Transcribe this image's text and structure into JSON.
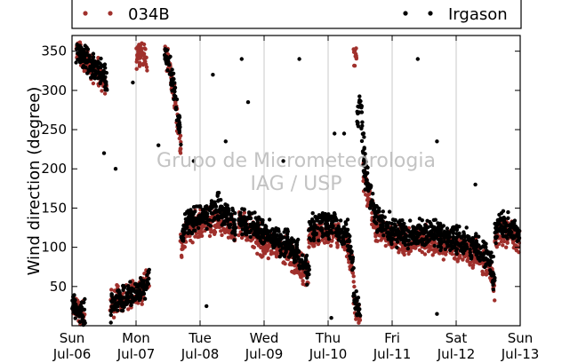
{
  "chart_data": {
    "type": "scatter",
    "title": "",
    "xlabel": "",
    "ylabel": "Wind direction (degree)",
    "ylim": [
      0,
      370
    ],
    "yticks": [
      50,
      100,
      150,
      200,
      250,
      300,
      350
    ],
    "xlim": [
      0,
      7
    ],
    "xticks": [
      {
        "day": "Sun",
        "date": "Jul-06"
      },
      {
        "day": "Mon",
        "date": "Jul-07"
      },
      {
        "day": "Tue",
        "date": "Jul-08"
      },
      {
        "day": "Wed",
        "date": "Jul-09"
      },
      {
        "day": "Thu",
        "date": "Jul-10"
      },
      {
        "day": "Fri",
        "date": "Jul-11"
      },
      {
        "day": "Sat",
        "date": "Jul-12"
      },
      {
        "day": "Sun",
        "date": "Jul-13"
      }
    ],
    "grid": "vertical",
    "legend_position": "top",
    "series": [
      {
        "name": "034B",
        "color": "#a0302c",
        "segments": [
          {
            "x": [
              0.0,
              0.05,
              0.1,
              0.15,
              0.2
            ],
            "y": [
              30,
              22,
              18,
              15,
              12
            ]
          },
          {
            "x": [
              0.07,
              0.2,
              0.35,
              0.5,
              0.55
            ],
            "y": [
              350,
              340,
              325,
              310,
              300
            ]
          },
          {
            "x": [
              0.6,
              0.75,
              0.9,
              1.1,
              1.2
            ],
            "y": [
              25,
              35,
              40,
              45,
              60
            ]
          },
          {
            "x": [
              1.0,
              1.02
            ],
            "y": [
              340,
              345
            ]
          },
          {
            "x": [
              1.0,
              1.1,
              1.17
            ],
            "y": [
              350,
              345,
              330
            ]
          },
          {
            "x": [
              1.45,
              1.52,
              1.6,
              1.7
            ],
            "y": [
              350,
              330,
              290,
              230
            ]
          },
          {
            "x": [
              1.7,
              1.8,
              2.0,
              2.3,
              2.55
            ],
            "y": [
              100,
              120,
              130,
              135,
              120
            ]
          },
          {
            "x": [
              2.6,
              2.8,
              3.0,
              3.2,
              3.5,
              3.7
            ],
            "y": [
              130,
              120,
              105,
              100,
              85,
              60
            ]
          },
          {
            "x": [
              3.7,
              3.9,
              4.1,
              4.3,
              4.4
            ],
            "y": [
              110,
              120,
              118,
              105,
              60
            ]
          },
          {
            "x": [
              4.4,
              4.45,
              4.5
            ],
            "y": [
              30,
              20,
              10
            ]
          },
          {
            "x": [
              4.4,
              4.45
            ],
            "y": [
              345,
              340
            ]
          },
          {
            "x": [
              4.55,
              4.75,
              5.0,
              5.3,
              5.5,
              5.75
            ],
            "y": [
              195,
              125,
              110,
              105,
              110,
              108
            ]
          },
          {
            "x": [
              5.75,
              6.0,
              6.3,
              6.5,
              6.6
            ],
            "y": [
              105,
              100,
              90,
              75,
              50
            ]
          },
          {
            "x": [
              6.6,
              6.7,
              6.85,
              7.0
            ],
            "y": [
              110,
              120,
              115,
              105
            ]
          }
        ]
      },
      {
        "name": "Irgason",
        "color": "#000000",
        "segments": [
          {
            "x": [
              0.0,
              0.05,
              0.1,
              0.15,
              0.2
            ],
            "y": [
              30,
              22,
              18,
              15,
              12
            ]
          },
          {
            "x": [
              0.07,
              0.2,
              0.35,
              0.5,
              0.55
            ],
            "y": [
              350,
              340,
              330,
              320,
              310
            ]
          },
          {
            "x": [
              0.6,
              0.75,
              0.9,
              1.1,
              1.2
            ],
            "y": [
              25,
              35,
              40,
              45,
              60
            ]
          },
          {
            "x": [
              1.45,
              1.52,
              1.6,
              1.7
            ],
            "y": [
              350,
              330,
              300,
              240
            ]
          },
          {
            "x": [
              1.7,
              1.8,
              2.0,
              2.3,
              2.55
            ],
            "y": [
              110,
              130,
              140,
              150,
              130
            ]
          },
          {
            "x": [
              2.6,
              2.8,
              3.0,
              3.2,
              3.5,
              3.7
            ],
            "y": [
              140,
              130,
              115,
              110,
              95,
              70
            ]
          },
          {
            "x": [
              3.7,
              3.9,
              4.1,
              4.3,
              4.4
            ],
            "y": [
              120,
              130,
              128,
              115,
              70
            ]
          },
          {
            "x": [
              4.4,
              4.45,
              4.5
            ],
            "y": [
              40,
              28,
              15
            ]
          },
          {
            "x": [
              4.45,
              4.5,
              4.55,
              4.6
            ],
            "y": [
              260,
              290,
              230,
              180
            ]
          },
          {
            "x": [
              4.55,
              4.75,
              5.0,
              5.3,
              5.5,
              5.75
            ],
            "y": [
              210,
              135,
              120,
              115,
              120,
              118
            ]
          },
          {
            "x": [
              5.75,
              6.0,
              6.3,
              6.5,
              6.6
            ],
            "y": [
              115,
              110,
              100,
              85,
              60
            ]
          },
          {
            "x": [
              6.6,
              6.7,
              6.85,
              7.0
            ],
            "y": [
              120,
              130,
              125,
              115
            ]
          }
        ],
        "outliers": [
          {
            "x": 0.5,
            "y": 220
          },
          {
            "x": 0.68,
            "y": 200
          },
          {
            "x": 2.2,
            "y": 320
          },
          {
            "x": 2.4,
            "y": 235
          },
          {
            "x": 2.65,
            "y": 340
          },
          {
            "x": 2.75,
            "y": 285
          },
          {
            "x": 3.55,
            "y": 340
          },
          {
            "x": 4.1,
            "y": 245
          },
          {
            "x": 4.25,
            "y": 245
          },
          {
            "x": 5.4,
            "y": 340
          },
          {
            "x": 5.7,
            "y": 235
          },
          {
            "x": 6.3,
            "y": 180
          },
          {
            "x": 3.3,
            "y": 210
          },
          {
            "x": 5.7,
            "y": 15
          },
          {
            "x": 2.1,
            "y": 25
          },
          {
            "x": 4.05,
            "y": 10
          },
          {
            "x": 1.35,
            "y": 230
          },
          {
            "x": 1.9,
            "y": 210
          },
          {
            "x": 0.95,
            "y": 310
          }
        ]
      }
    ],
    "watermark": [
      "Grupo de Micrometeorologia",
      "IAG / USP"
    ]
  }
}
